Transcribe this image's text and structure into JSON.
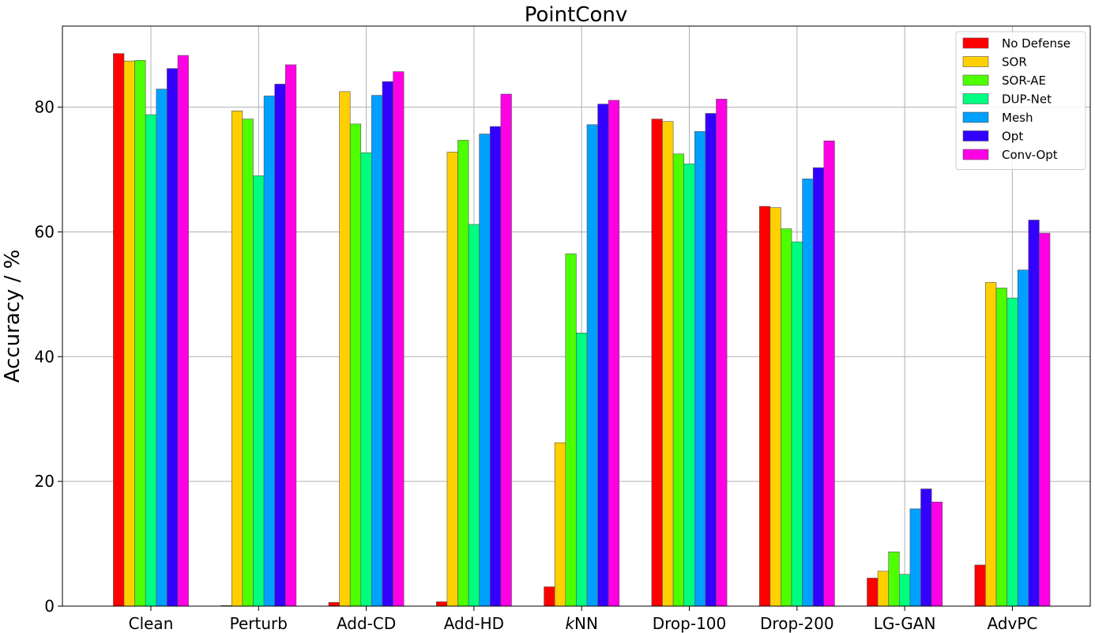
{
  "chart_data": {
    "type": "bar",
    "title": "PointConv",
    "xlabel": "",
    "ylabel": "Accuracy / %",
    "ylim": [
      0,
      93
    ],
    "yticks": [
      0,
      20,
      40,
      60,
      80
    ],
    "grid": true,
    "legend_position": "top-right",
    "categories": [
      "Clean",
      "Perturb",
      "Add-CD",
      "Add-HD",
      "kNN",
      "Drop-100",
      "Drop-200",
      "LG-GAN",
      "AdvPC"
    ],
    "series": [
      {
        "name": "No Defense",
        "color": "#ff0000",
        "values": [
          88.6,
          0.1,
          0.6,
          0.7,
          3.1,
          78.1,
          64.1,
          4.5,
          6.6
        ]
      },
      {
        "name": "SOR",
        "color": "#ffd000",
        "values": [
          87.4,
          79.4,
          82.5,
          72.8,
          26.2,
          77.7,
          63.9,
          5.6,
          51.9
        ]
      },
      {
        "name": "SOR-AE",
        "color": "#4dff00",
        "values": [
          87.5,
          78.1,
          77.3,
          74.7,
          56.5,
          72.5,
          60.5,
          8.7,
          51.0
        ]
      },
      {
        "name": "DUP-Net",
        "color": "#00ff80",
        "values": [
          78.8,
          69.0,
          72.7,
          61.2,
          43.8,
          70.9,
          58.4,
          5.1,
          49.4
        ]
      },
      {
        "name": "Mesh",
        "color": "#00a0ff",
        "values": [
          82.9,
          81.8,
          81.9,
          75.7,
          77.2,
          76.1,
          68.5,
          15.6,
          53.9
        ]
      },
      {
        "name": "Opt",
        "color": "#3300ff",
        "values": [
          86.2,
          83.7,
          84.1,
          76.9,
          80.5,
          79.0,
          70.3,
          18.8,
          61.9
        ]
      },
      {
        "name": "Conv-Opt",
        "color": "#ff00e5",
        "values": [
          88.3,
          86.8,
          85.7,
          82.1,
          81.1,
          81.3,
          74.6,
          16.7,
          59.8
        ]
      }
    ]
  }
}
